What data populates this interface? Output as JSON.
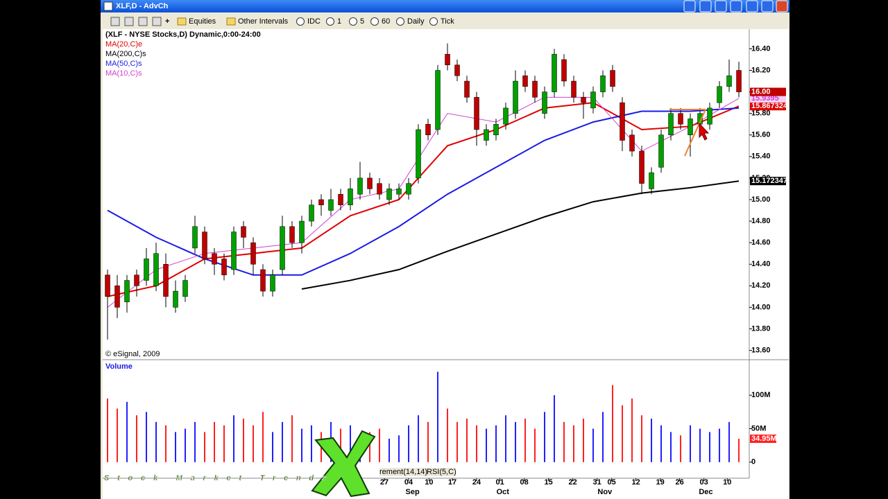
{
  "window": {
    "title": "XLF,D - AdvCh"
  },
  "toolbar": {
    "items": [
      "Equities",
      "Other Intervals",
      "IDC",
      "1",
      "5",
      "60",
      "Daily",
      "Tick"
    ]
  },
  "chart_data": {
    "type": "candlestick",
    "header": "(XLF - NYSE Stocks,D) Dynamic,0:00-24:00",
    "copyright": "© eSignal, 2009",
    "up_color": "#00a000",
    "down_color": "#c00000",
    "xlim": [
      -0.5,
      66.07
    ],
    "ylim": [
      13.52,
      16.57
    ],
    "yticks": [
      {
        "value": 16.4,
        "label": "16.40"
      },
      {
        "value": 16.2,
        "label": "16.20"
      },
      {
        "value": 16.0,
        "label": "16.00"
      },
      {
        "value": 15.8,
        "label": "15.80"
      },
      {
        "value": 15.6,
        "label": "15.60"
      },
      {
        "value": 15.4,
        "label": "15.40"
      },
      {
        "value": 15.2,
        "label": "15.20"
      },
      {
        "value": 15.0,
        "label": "15.00"
      },
      {
        "value": 14.8,
        "label": "14.80"
      },
      {
        "value": 14.6,
        "label": "14.60"
      },
      {
        "value": 14.4,
        "label": "14.40"
      },
      {
        "value": 14.2,
        "label": "14.20"
      },
      {
        "value": 14.0,
        "label": "14.00"
      },
      {
        "value": 13.8,
        "label": "13.80"
      },
      {
        "value": 13.6,
        "label": "13.60"
      }
    ],
    "ohlc": [
      [
        14.3,
        14.35,
        13.7,
        14.1
      ],
      [
        14.2,
        14.3,
        13.9,
        14.0
      ],
      [
        14.05,
        14.3,
        13.95,
        14.25
      ],
      [
        14.3,
        14.35,
        14.1,
        14.2
      ],
      [
        14.25,
        14.55,
        14.2,
        14.45
      ],
      [
        14.2,
        14.6,
        14.15,
        14.5
      ],
      [
        14.4,
        14.5,
        14.0,
        14.1
      ],
      [
        14.0,
        14.25,
        13.95,
        14.15
      ],
      [
        14.1,
        14.3,
        14.05,
        14.25
      ],
      [
        14.55,
        14.85,
        14.5,
        14.75
      ],
      [
        14.7,
        14.75,
        14.4,
        14.45
      ],
      [
        14.5,
        14.55,
        14.3,
        14.4
      ],
      [
        14.45,
        14.5,
        14.25,
        14.3
      ],
      [
        14.35,
        14.75,
        14.3,
        14.7
      ],
      [
        14.75,
        14.8,
        14.55,
        14.65
      ],
      [
        14.6,
        14.65,
        14.3,
        14.4
      ],
      [
        14.35,
        14.4,
        14.1,
        14.15
      ],
      [
        14.15,
        14.35,
        14.1,
        14.3
      ],
      [
        14.35,
        14.85,
        14.3,
        14.75
      ],
      [
        14.75,
        14.8,
        14.55,
        14.6
      ],
      [
        14.6,
        14.85,
        14.5,
        14.8
      ],
      [
        14.8,
        15.0,
        14.75,
        14.95
      ],
      [
        15.0,
        15.05,
        14.85,
        14.95
      ],
      [
        14.9,
        15.1,
        14.85,
        15.0
      ],
      [
        15.05,
        15.1,
        14.9,
        14.95
      ],
      [
        14.95,
        15.2,
        14.9,
        15.1
      ],
      [
        15.05,
        15.35,
        15.0,
        15.2
      ],
      [
        15.2,
        15.25,
        15.05,
        15.1
      ],
      [
        15.15,
        15.2,
        15.0,
        15.05
      ],
      [
        15.0,
        15.15,
        14.95,
        15.1
      ],
      [
        15.05,
        15.15,
        15.0,
        15.1
      ],
      [
        15.05,
        15.2,
        15.0,
        15.15
      ],
      [
        15.2,
        15.7,
        15.15,
        15.65
      ],
      [
        15.7,
        15.75,
        15.55,
        15.6
      ],
      [
        15.65,
        16.25,
        15.6,
        16.2
      ],
      [
        16.35,
        16.45,
        16.2,
        16.25
      ],
      [
        16.25,
        16.3,
        16.1,
        16.15
      ],
      [
        16.1,
        16.15,
        15.9,
        15.95
      ],
      [
        15.95,
        16.0,
        15.5,
        15.65
      ],
      [
        15.55,
        15.7,
        15.5,
        15.65
      ],
      [
        15.6,
        15.75,
        15.55,
        15.7
      ],
      [
        15.7,
        15.9,
        15.65,
        15.85
      ],
      [
        15.8,
        16.2,
        15.75,
        16.1
      ],
      [
        16.15,
        16.2,
        16.0,
        16.05
      ],
      [
        16.1,
        16.15,
        15.9,
        15.95
      ],
      [
        15.8,
        16.05,
        15.75,
        16.0
      ],
      [
        16.0,
        16.4,
        15.95,
        16.35
      ],
      [
        16.3,
        16.35,
        16.05,
        16.1
      ],
      [
        16.1,
        16.15,
        15.9,
        15.95
      ],
      [
        15.95,
        16.0,
        15.75,
        15.9
      ],
      [
        15.85,
        16.05,
        15.8,
        16.0
      ],
      [
        16.0,
        16.2,
        15.95,
        16.15
      ],
      [
        16.2,
        16.25,
        16.0,
        16.05
      ],
      [
        15.9,
        15.95,
        15.45,
        15.55
      ],
      [
        15.6,
        15.65,
        15.4,
        15.45
      ],
      [
        15.45,
        15.5,
        15.05,
        15.15
      ],
      [
        15.1,
        15.3,
        15.05,
        15.25
      ],
      [
        15.3,
        15.65,
        15.25,
        15.6
      ],
      [
        15.6,
        15.85,
        15.55,
        15.8
      ],
      [
        15.8,
        15.85,
        15.65,
        15.7
      ],
      [
        15.6,
        15.8,
        15.4,
        15.75
      ],
      [
        15.7,
        15.85,
        15.65,
        15.8
      ],
      [
        15.7,
        15.9,
        15.65,
        15.85
      ],
      [
        15.9,
        16.1,
        15.85,
        16.05
      ],
      [
        16.05,
        16.3,
        16.0,
        16.15
      ],
      [
        16.2,
        16.28,
        15.95,
        16.0
      ]
    ],
    "last_price_label": "16.00",
    "ma_x": [
      0,
      5,
      10,
      15,
      20,
      25,
      30,
      35,
      40,
      45,
      50,
      55,
      60,
      65
    ],
    "series": [
      {
        "name": "MA(20,C)e",
        "color": "#e00000",
        "values": [
          14.1,
          14.2,
          14.45,
          14.5,
          14.55,
          14.85,
          15.0,
          15.5,
          15.65,
          15.85,
          15.9,
          15.65,
          15.68,
          15.867324
        ],
        "last_label": "15.867324"
      },
      {
        "name": "MA(200,C)s",
        "color": "#000000",
        "values": [
          null,
          null,
          null,
          null,
          14.17,
          14.25,
          14.35,
          14.52,
          14.68,
          14.84,
          14.98,
          15.06,
          15.11,
          15.172347
        ],
        "last_label": "15.172347"
      },
      {
        "name": "MA(50,C)s",
        "color": "#1a1ae6",
        "values": [
          14.9,
          14.65,
          14.45,
          14.3,
          14.3,
          14.5,
          14.75,
          15.05,
          15.3,
          15.55,
          15.72,
          15.82,
          15.82,
          15.85
        ]
      },
      {
        "name": "MA(10,C)s",
        "color": "#d040d0",
        "values": [
          14.0,
          14.35,
          14.5,
          14.55,
          14.6,
          15.0,
          15.1,
          15.8,
          15.72,
          15.95,
          15.95,
          15.45,
          15.68,
          15.9395
        ],
        "last_label": "15.9395"
      }
    ],
    "volume": {
      "title": "Volume",
      "up_color": "#2020ff",
      "down_color": "#ff2020",
      "values": [
        95,
        80,
        90,
        70,
        75,
        60,
        55,
        45,
        50,
        60,
        45,
        60,
        55,
        70,
        65,
        55,
        75,
        45,
        60,
        70,
        50,
        55,
        45,
        60,
        50,
        55,
        40,
        45,
        50,
        35,
        40,
        55,
        70,
        60,
        135,
        80,
        60,
        65,
        55,
        50,
        55,
        70,
        60,
        65,
        50,
        75,
        100,
        60,
        55,
        65,
        50,
        75,
        115,
        85,
        95,
        70,
        65,
        55,
        45,
        40,
        55,
        50,
        45,
        50,
        60,
        34.95
      ],
      "last_label": "34.95M",
      "ylim": [
        -24,
        152
      ],
      "yticks": [
        {
          "value": 100,
          "label": "100M"
        },
        {
          "value": 50,
          "label": "50M"
        },
        0
      ]
    },
    "date_ticks": [
      {
        "x": 28.5,
        "label": "27"
      },
      {
        "x": 31,
        "label": "04"
      },
      {
        "x": 33.1,
        "label": "10"
      },
      {
        "x": 35.5,
        "label": "17"
      },
      {
        "x": 38,
        "label": "24"
      },
      {
        "x": 40.4,
        "label": "01"
      },
      {
        "x": 42.9,
        "label": "08"
      },
      {
        "x": 45.4,
        "label": "15"
      },
      {
        "x": 47.9,
        "label": "22"
      },
      {
        "x": 50.4,
        "label": "31"
      },
      {
        "x": 51.9,
        "label": "05"
      },
      {
        "x": 54.4,
        "label": "12"
      },
      {
        "x": 56.9,
        "label": "19"
      },
      {
        "x": 58.9,
        "label": "26"
      },
      {
        "x": 61.4,
        "label": "03"
      },
      {
        "x": 63.8,
        "label": "10"
      }
    ],
    "month_ticks": [
      {
        "x": 31.4,
        "label": "Sep"
      },
      {
        "x": 40.7,
        "label": "Oct"
      },
      {
        "x": 51.2,
        "label": "Nov"
      },
      {
        "x": 61.6,
        "label": "Dec"
      }
    ],
    "tabs": [
      "rement(14,14)",
      "RSI(5,C)"
    ]
  },
  "overlay": {
    "logo": "Stock Market Trends"
  }
}
